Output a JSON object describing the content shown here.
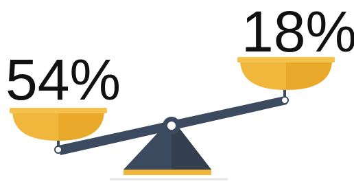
{
  "left_pan": {
    "label": "54%"
  },
  "right_pan": {
    "label": "18%"
  }
}
